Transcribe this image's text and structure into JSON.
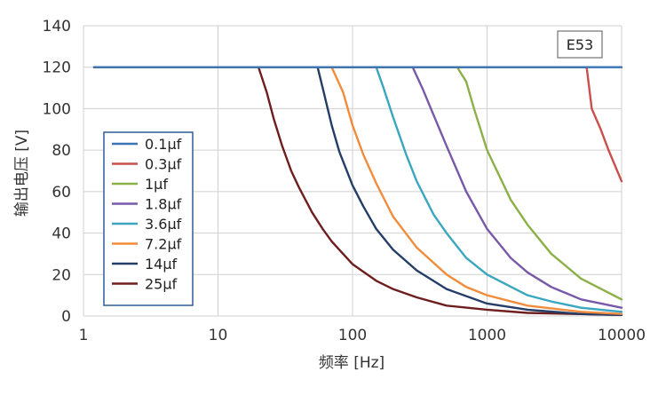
{
  "chart_data": {
    "type": "line",
    "title": "",
    "xlabel": "频率 [Hz]",
    "ylabel": "输出电压 [V]",
    "x_scale": "log",
    "xlim": [
      1,
      10000
    ],
    "ylim": [
      0,
      140
    ],
    "x_ticks": [
      1,
      10,
      100,
      1000,
      10000
    ],
    "y_ticks": [
      0,
      20,
      40,
      60,
      80,
      100,
      120,
      140
    ],
    "x_tick_labels": [
      "1",
      "10",
      "100",
      "1000",
      "10000"
    ],
    "y_tick_labels": [
      "0",
      "20",
      "40",
      "60",
      "80",
      "100",
      "120",
      "140"
    ],
    "grid": true,
    "legend_position": "left",
    "annotation": "E53",
    "series": [
      {
        "name": "0.1μf",
        "color": "#3a74b4",
        "x": [
          1.2,
          10,
          100,
          1000,
          10000
        ],
        "y": [
          120,
          120,
          120,
          120,
          120
        ]
      },
      {
        "name": "0.3μf",
        "color": "#c8504a",
        "x": [
          1.2,
          100,
          1000,
          5500,
          6000,
          7000,
          8000,
          10000
        ],
        "y": [
          120,
          120,
          120,
          120,
          100,
          90,
          80,
          65
        ]
      },
      {
        "name": "1μf",
        "color": "#8cb048",
        "x": [
          1.2,
          100,
          600,
          700,
          800,
          1000,
          1500,
          2000,
          3000,
          5000,
          10000
        ],
        "y": [
          120,
          120,
          120,
          113,
          100,
          80,
          56,
          44,
          30,
          18,
          8
        ]
      },
      {
        "name": "1.8μf",
        "color": "#7858a8",
        "x": [
          1.2,
          100,
          280,
          330,
          400,
          500,
          700,
          1000,
          1500,
          2000,
          3000,
          5000,
          10000
        ],
        "y": [
          120,
          120,
          120,
          110,
          97,
          82,
          60,
          42,
          28,
          21,
          14,
          8,
          4
        ]
      },
      {
        "name": "3.6μf",
        "color": "#3aa6c0",
        "x": [
          1.2,
          100,
          150,
          170,
          200,
          250,
          300,
          400,
          500,
          700,
          1000,
          2000,
          3000,
          5000,
          10000
        ],
        "y": [
          120,
          120,
          120,
          110,
          96,
          78,
          65,
          49,
          40,
          28,
          20,
          10,
          7,
          4,
          2
        ]
      },
      {
        "name": "7.2μf",
        "color": "#f08c3c",
        "x": [
          1.2,
          50,
          70,
          85,
          100,
          120,
          150,
          200,
          300,
          500,
          700,
          1000,
          2000,
          5000,
          10000
        ],
        "y": [
          120,
          120,
          120,
          108,
          92,
          78,
          64,
          48,
          33,
          20,
          14,
          10,
          5,
          2,
          1
        ]
      },
      {
        "name": "14μf",
        "color": "#243e68",
        "x": [
          1.2,
          40,
          55,
          60,
          70,
          80,
          100,
          120,
          150,
          200,
          300,
          500,
          1000,
          2000,
          5000,
          10000
        ],
        "y": [
          120,
          120,
          120,
          110,
          92,
          79,
          63,
          53,
          42,
          32,
          22,
          13,
          6,
          3,
          1,
          0.5
        ]
      },
      {
        "name": "25μf",
        "color": "#6e1e1e",
        "x": [
          1.2,
          15,
          20,
          23,
          26,
          30,
          35,
          40,
          50,
          60,
          70,
          85,
          100,
          150,
          200,
          300,
          500,
          1000,
          2000,
          10000
        ],
        "y": [
          120,
          120,
          120,
          108,
          95,
          82,
          70,
          62,
          50,
          42,
          36,
          30,
          25,
          17,
          13,
          9,
          5,
          3,
          1.5,
          0.5
        ]
      }
    ]
  }
}
